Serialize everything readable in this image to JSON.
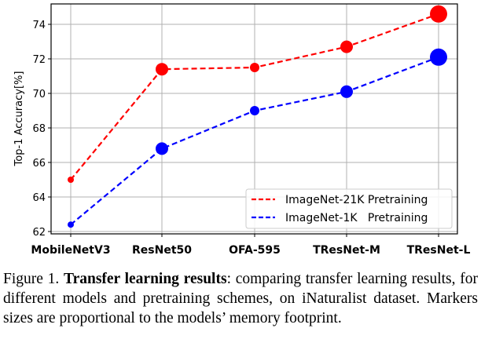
{
  "caption": {
    "label": "Figure 1.",
    "title": "Transfer learning results",
    "text": ": comparing transfer learning results, for different models and pretraining schemes, on iNaturalist dataset. Markers sizes are proportional to the models’ memory footprint."
  },
  "chart_data": {
    "type": "line",
    "title": "",
    "xlabel": "",
    "ylabel": "Top-1 Accuracy[%]",
    "categories": [
      "MobileNetV3",
      "ResNet50",
      "OFA-595",
      "TResNet-M",
      "TResNet-L"
    ],
    "ylim": [
      61.9,
      75.2
    ],
    "yticks": [
      62,
      64,
      66,
      68,
      70,
      72,
      74
    ],
    "grid": true,
    "legend_position": "lower right",
    "series": [
      {
        "name": "ImageNet-21K Pretraining",
        "color": "#ff0000",
        "linestyle": "dashed",
        "values": [
          65.0,
          71.4,
          71.5,
          72.7,
          74.6
        ],
        "marker_sizes": [
          4,
          8,
          6,
          8,
          11
        ]
      },
      {
        "name": "ImageNet-1K   Pretraining",
        "color": "#0000ff",
        "linestyle": "dashed",
        "values": [
          62.4,
          66.8,
          69.0,
          70.1,
          72.1
        ],
        "marker_sizes": [
          4,
          8,
          6,
          8,
          11
        ]
      }
    ],
    "annotations": [
      "Markers sizes are proportional to the models’ memory footprint"
    ]
  }
}
